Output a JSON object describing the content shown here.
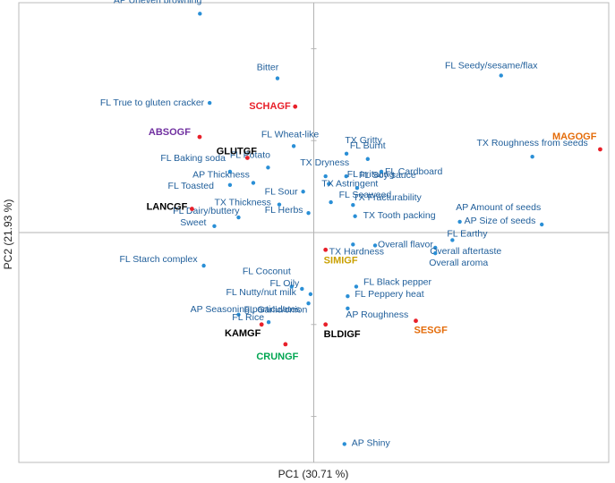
{
  "chart_data": {
    "type": "scatter",
    "title": "",
    "xlabel": "PC1 (30.71 %)",
    "ylabel": "PC2 (21.93 %)",
    "xlim": [
      -1.0,
      1.0
    ],
    "ylim": [
      -1.0,
      1.0
    ],
    "grid": false,
    "attribute_color": "#2a8fd6",
    "product_marker_color": "#e8202a",
    "series": [
      {
        "name": "",
        "points": [
          {
            "label": "AP Uneven browning",
            "x": -0.386,
            "y": 0.952
          },
          {
            "label": "Bitter",
            "x": -0.123,
            "y": 0.671
          },
          {
            "label": "FL Seedy/sesame/flax",
            "x": 0.635,
            "y": 0.683
          },
          {
            "label": "FL True to gluten cracker",
            "x": -0.353,
            "y": 0.564
          },
          {
            "label": "FL Wheat-like",
            "x": -0.068,
            "y": 0.376
          },
          {
            "label": "TX Gritty",
            "x": 0.111,
            "y": 0.343
          },
          {
            "label": "FL Burnt",
            "x": 0.183,
            "y": 0.32
          },
          {
            "label": "FL Irritating",
            "x": 0.11,
            "y": 0.245
          },
          {
            "label": "TX Dryness",
            "x": 0.04,
            "y": 0.245
          },
          {
            "label": "FL Cardboard",
            "x": 0.229,
            "y": 0.265
          },
          {
            "label": "TX Astringent",
            "x": 0.051,
            "y": 0.212
          },
          {
            "label": "TX Roughness from seeds",
            "x": 0.741,
            "y": 0.33
          },
          {
            "label": "FL Baking soda",
            "x": -0.284,
            "y": 0.265
          },
          {
            "label": "FL Potato",
            "x": -0.155,
            "y": 0.283
          },
          {
            "label": "FL Toasted",
            "x": -0.284,
            "y": 0.207
          },
          {
            "label": "AP Thickness",
            "x": -0.205,
            "y": 0.216
          },
          {
            "label": "FL Sour",
            "x": -0.036,
            "y": 0.178
          },
          {
            "label": "FL Soy sauce",
            "x": 0.147,
            "y": 0.194
          },
          {
            "label": "TX Thickness",
            "x": -0.117,
            "y": 0.122
          },
          {
            "label": "FL Seaweed",
            "x": 0.058,
            "y": 0.132
          },
          {
            "label": "TX Fracturability",
            "x": 0.133,
            "y": 0.12
          },
          {
            "label": "AP Amount of seeds",
            "x": 0.773,
            "y": 0.035
          },
          {
            "label": "FL Dairy/buttery",
            "x": -0.255,
            "y": 0.066
          },
          {
            "label": "FL Herbs",
            "x": -0.018,
            "y": 0.085
          },
          {
            "label": "TX Tooth packing",
            "x": 0.14,
            "y": 0.071
          },
          {
            "label": "AP Size of seeds",
            "x": 0.495,
            "y": 0.047
          },
          {
            "label": "Sweet",
            "x": -0.337,
            "y": 0.028
          },
          {
            "label": "Overall flavor",
            "x": 0.208,
            "y": -0.056
          },
          {
            "label": "FL Earthy",
            "x": 0.47,
            "y": -0.033
          },
          {
            "label": "Overall aftertaste",
            "x": 0.412,
            "y": -0.066
          },
          {
            "label": "Overall aroma",
            "x": 0.412,
            "y": -0.09
          },
          {
            "label": "TX Hardness",
            "x": 0.133,
            "y": -0.052
          },
          {
            "label": "FL Starch complex",
            "x": -0.373,
            "y": -0.144
          },
          {
            "label": "FL Coconut",
            "x": -0.075,
            "y": -0.235
          },
          {
            "label": "FL Oily",
            "x": -0.04,
            "y": -0.245
          },
          {
            "label": "FL Black pepper",
            "x": 0.144,
            "y": -0.235
          },
          {
            "label": "FL Nutty/nut milk",
            "x": -0.011,
            "y": -0.268
          },
          {
            "label": "FL Peppery heat",
            "x": 0.115,
            "y": -0.277
          },
          {
            "label": "AP Seasoning particulates",
            "x": -0.018,
            "y": -0.308
          },
          {
            "label": "AP Roughness",
            "x": 0.115,
            "y": -0.33
          },
          {
            "label": "FL Garlic/onion",
            "x": -0.255,
            "y": -0.357
          },
          {
            "label": "FL Rice",
            "x": -0.153,
            "y": -0.39
          },
          {
            "label": "AP Shiny",
            "x": 0.104,
            "y": -0.92
          }
        ]
      },
      {
        "name": "",
        "points": [
          {
            "label": "SCHAGF",
            "x": -0.063,
            "y": 0.548,
            "color": "#e8202a"
          },
          {
            "label": "MAGOGF",
            "x": 0.971,
            "y": 0.362,
            "color": "#e46c0a"
          },
          {
            "label": "ABSOGF",
            "x": -0.387,
            "y": 0.416,
            "color": "#7030a0"
          },
          {
            "label": "GLUTGF",
            "x": -0.225,
            "y": 0.325,
            "color": "#000000"
          },
          {
            "label": "LANCGF",
            "x": -0.413,
            "y": 0.103,
            "color": "#000000"
          },
          {
            "label": "SIMIGF",
            "x": 0.04,
            "y": -0.075,
            "color": "#c9a000"
          },
          {
            "label": "SESGF",
            "x": 0.346,
            "y": -0.384,
            "color": "#e46c0a"
          },
          {
            "label": "BLDIGF",
            "x": 0.04,
            "y": -0.4,
            "color": "#000000"
          },
          {
            "label": "KAMGF",
            "x": -0.177,
            "y": -0.4,
            "color": "#000000"
          },
          {
            "label": "CRUNGF",
            "x": -0.096,
            "y": -0.486,
            "color": "#00a651"
          }
        ]
      }
    ]
  }
}
